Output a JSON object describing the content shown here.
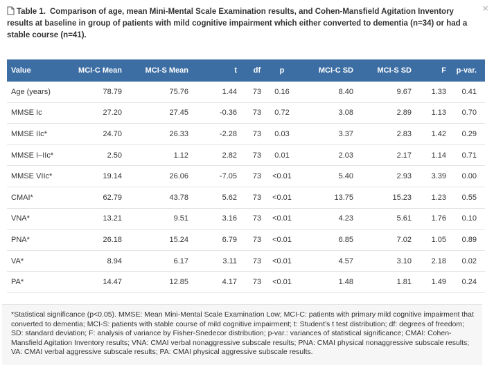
{
  "header": {
    "label": "Table 1.",
    "caption": "Comparison of age, mean Mini-Mental Scale Examination results, and Cohen-Mansfield Agitation Inventory results at baseline in group of patients with mild cognitive impairment which either converted to dementia (n=34) or had a stable course (n=41).",
    "close": "×"
  },
  "table": {
    "columns": [
      "Value",
      "MCI-C Mean",
      "MCI-S Mean",
      "t",
      "df",
      "p",
      "MCI-C SD",
      "MCI-S SD",
      "F",
      "p-var."
    ],
    "rows": [
      [
        "Age (years)",
        "78.79",
        "75.76",
        "1.44",
        "73",
        "0.16",
        "8.40",
        "9.67",
        "1.33",
        "0.41"
      ],
      [
        "MMSE Ic",
        "27.20",
        "27.45",
        "-0.36",
        "73",
        "0.72",
        "3.08",
        "2.89",
        "1.13",
        "0.70"
      ],
      [
        "MMSE IIc*",
        "24.70",
        "26.33",
        "-2.28",
        "73",
        "0.03",
        "3.37",
        "2.83",
        "1.42",
        "0.29"
      ],
      [
        "MMSE I–IIc*",
        "2.50",
        "1.12",
        "2.82",
        "73",
        "0.01",
        "2.03",
        "2.17",
        "1.14",
        "0.71"
      ],
      [
        "MMSE VIIc*",
        "19.14",
        "26.06",
        "-7.05",
        "73",
        "<0.01",
        "5.40",
        "2.93",
        "3.39",
        "0.00"
      ],
      [
        "CMAI*",
        "62.79",
        "43.78",
        "5.62",
        "73",
        "<0.01",
        "13.75",
        "15.23",
        "1.23",
        "0.55"
      ],
      [
        "VNA*",
        "13.21",
        "9.51",
        "3.16",
        "73",
        "<0.01",
        "4.23",
        "5.61",
        "1.76",
        "0.10"
      ],
      [
        "PNA*",
        "26.18",
        "15.24",
        "6.79",
        "73",
        "<0.01",
        "6.85",
        "7.02",
        "1.05",
        "0.89"
      ],
      [
        "VA*",
        "8.94",
        "6.17",
        "3.11",
        "73",
        "<0.01",
        "4.57",
        "3.10",
        "2.18",
        "0.02"
      ],
      [
        "PA*",
        "14.47",
        "12.85",
        "4.17",
        "73",
        "<0.01",
        "1.48",
        "1.81",
        "1.49",
        "0.24"
      ]
    ]
  },
  "footnote": "*Statistical significance (p<0.05). MMSE: Mean Mini-Mental Scale Examination Low; MCI-C: patients with primary mild cognitive impairment that converted to dementia; MCI-S: patients with stable course of mild cognitive impairment; t: Student’s t test distribution; df: degrees of freedom; SD: standard deviation; F: analysis of variance by Fisher-Snedecor distribution; p-var.: variances of statistical significance; CMAI: Cohen-Mansfield Agitation Inventory results; VNA: CMAI verbal nonaggressive subscale results; PNA: CMAI physical nonaggressive subscale results; VA: CMAI verbal aggressive subscale results; PA: CMAI physical aggressive subscale results."
}
